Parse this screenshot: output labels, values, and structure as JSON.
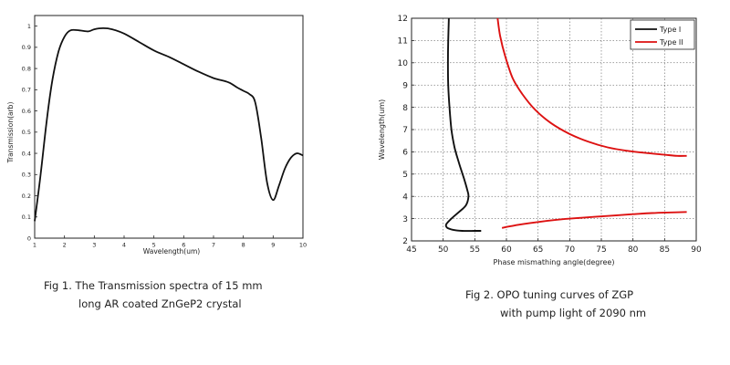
{
  "captions": {
    "fig1_line1": "Fig 1.  The Transmission spectra of 15 mm",
    "fig1_line2": "long  AR coated ZnGeP2 crystal",
    "fig2_line1": "Fig 2.   OPO tuning curves of ZGP",
    "fig2_line2": "with pump light of 2090 nm"
  },
  "chart_data": [
    {
      "type": "line",
      "title": "",
      "xlabel": "Wavelength(um)",
      "ylabel": "Transmission(arb)",
      "xlim": [
        1,
        10
      ],
      "ylim": [
        0,
        1.05
      ],
      "xticks": [
        "1",
        "2",
        "3",
        "4",
        "5",
        "6",
        "7",
        "8",
        "9",
        "10"
      ],
      "yticks": [
        "0",
        "0.1",
        "0.2",
        "0.3",
        "0.4",
        "0.5",
        "0.6",
        "0.7",
        "0.8",
        "0.9",
        "1"
      ],
      "grid": false,
      "series": [
        {
          "color": "#111111",
          "x": [
            1.0,
            1.2,
            1.4,
            1.6,
            1.8,
            2.0,
            2.2,
            2.5,
            2.8,
            3.0,
            3.3,
            3.6,
            4.0,
            4.5,
            5.0,
            5.5,
            6.0,
            6.5,
            7.0,
            7.5,
            7.8,
            8.0,
            8.2,
            8.4,
            8.6,
            8.8,
            9.0,
            9.2,
            9.4,
            9.6,
            9.8,
            10.0
          ],
          "y": [
            0.08,
            0.3,
            0.55,
            0.75,
            0.88,
            0.95,
            0.98,
            0.98,
            0.975,
            0.985,
            0.99,
            0.985,
            0.965,
            0.925,
            0.885,
            0.855,
            0.82,
            0.785,
            0.755,
            0.735,
            0.71,
            0.695,
            0.68,
            0.64,
            0.47,
            0.26,
            0.18,
            0.25,
            0.33,
            0.38,
            0.4,
            0.39
          ]
        }
      ]
    },
    {
      "type": "line",
      "title": "",
      "xlabel": "Phase mismathing angle(degree)",
      "ylabel": "Wavelength(um)",
      "xlim": [
        45,
        90
      ],
      "ylim": [
        2,
        12
      ],
      "xticks": [
        "45",
        "50",
        "55",
        "60",
        "65",
        "70",
        "75",
        "80",
        "85",
        "90"
      ],
      "yticks": [
        "2",
        "3",
        "4",
        "5",
        "6",
        "7",
        "8",
        "9",
        "10",
        "11",
        "12"
      ],
      "grid": true,
      "legend": "top-right",
      "series": [
        {
          "name": "Type I",
          "color": "#111111",
          "x": [
            50.9,
            50.8,
            50.75,
            50.8,
            51.0,
            51.3,
            51.8,
            52.5,
            53.3,
            53.8,
            54.0,
            53.6,
            52.5,
            51.3,
            50.5,
            50.6,
            51.5,
            53.0,
            55.0,
            56.0
          ],
          "y": [
            12.0,
            11.0,
            10.0,
            9.0,
            8.0,
            7.0,
            6.2,
            5.5,
            4.8,
            4.3,
            4.0,
            3.6,
            3.3,
            3.0,
            2.75,
            2.6,
            2.5,
            2.45,
            2.45,
            2.45
          ]
        },
        {
          "name": "Type II",
          "color": "#dd1111",
          "x": [
            58.6,
            59.0,
            59.8,
            61.0,
            62.5,
            64.5,
            67.0,
            70.0,
            73.0,
            76.0,
            79.0,
            82.0,
            85.0,
            87.0,
            88.5
          ],
          "y": [
            12.0,
            11.2,
            10.3,
            9.3,
            8.6,
            7.9,
            7.3,
            6.8,
            6.45,
            6.2,
            6.05,
            5.95,
            5.87,
            5.82,
            5.82
          ]
        },
        {
          "name": "Type II",
          "color": "#dd1111",
          "x": [
            59.3,
            60.5,
            62.5,
            65.0,
            68.0,
            71.0,
            74.0,
            77.0,
            80.0,
            83.0,
            86.0,
            88.5
          ],
          "y": [
            2.58,
            2.65,
            2.75,
            2.85,
            2.95,
            3.02,
            3.08,
            3.14,
            3.2,
            3.25,
            3.28,
            3.3
          ]
        }
      ]
    }
  ]
}
